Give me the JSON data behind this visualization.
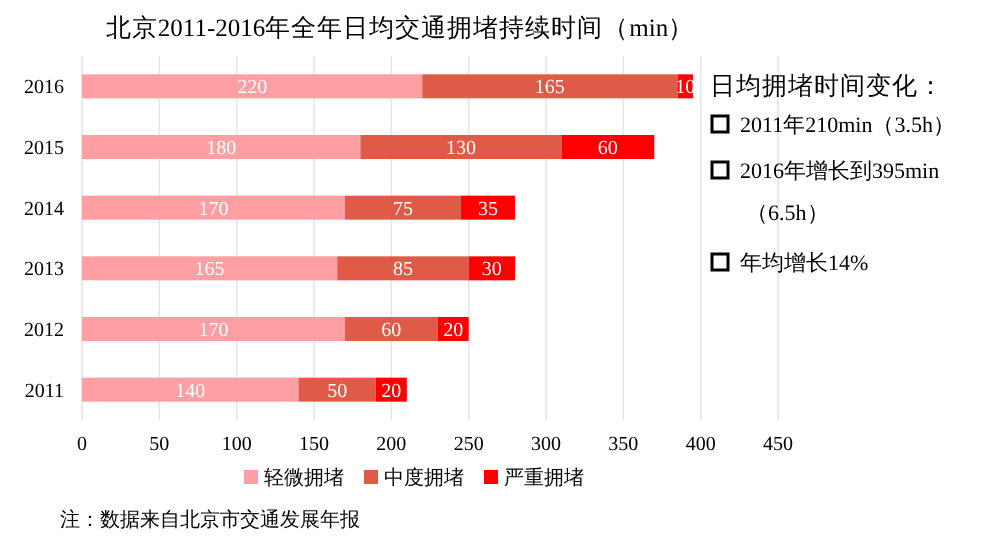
{
  "chart_data": {
    "type": "bar",
    "orientation": "horizontal",
    "stacked": true,
    "title": "北京2011-2016年全年日均交通拥堵持续时间（min）",
    "categories": [
      "2016",
      "2015",
      "2014",
      "2013",
      "2012",
      "2011"
    ],
    "series": [
      {
        "name": "轻微拥堵",
        "color": "#ff9ea3",
        "values": [
          220,
          180,
          170,
          165,
          170,
          140
        ]
      },
      {
        "name": "中度拥堵",
        "color": "#e05a48",
        "values": [
          165,
          130,
          75,
          85,
          60,
          50
        ]
      },
      {
        "name": "严重拥堵",
        "color": "#ff0000",
        "values": [
          10,
          60,
          35,
          30,
          20,
          20
        ]
      }
    ],
    "xlim": [
      0,
      450
    ],
    "xticks": [
      0,
      50,
      100,
      150,
      200,
      250,
      300,
      350,
      400,
      450
    ],
    "grid": "x",
    "legend": "bottom",
    "data_labels": true,
    "annotations": [
      "日均拥堵时间变化：",
      "2011年210min（3.5h）",
      "2016年增长到395min（6.5h）",
      "年均增长14%",
      "注：数据来自北京市交通发展年报"
    ]
  }
}
